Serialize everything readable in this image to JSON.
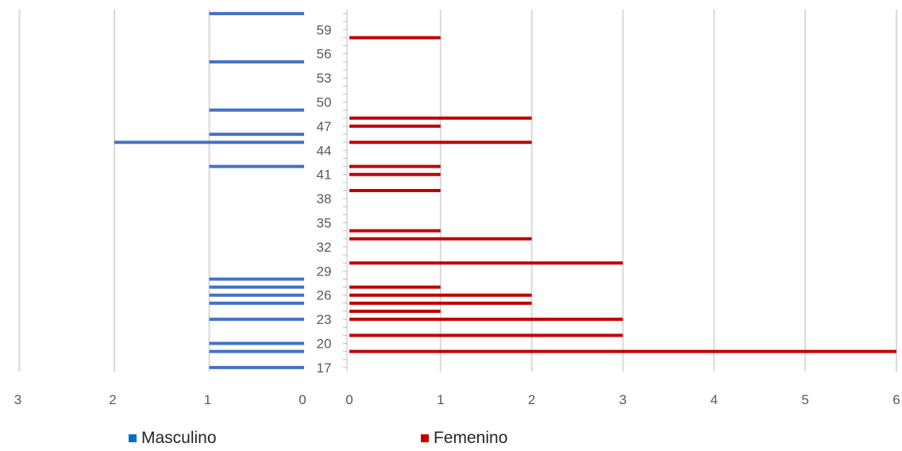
{
  "chart_data": {
    "type": "bar",
    "orientation": "horizontal",
    "layout": "population-pyramid",
    "grid": true,
    "legend_position": "bottom",
    "y_ticks": [
      "17",
      "20",
      "23",
      "26",
      "29",
      "32",
      "35",
      "38",
      "41",
      "44",
      "47",
      "50",
      "53",
      "56",
      "59"
    ],
    "left_axis": {
      "ticks": [
        "3",
        "2",
        "1",
        "0"
      ],
      "xlim": [
        0,
        3
      ],
      "reversed": true
    },
    "right_axis": {
      "ticks": [
        "0",
        "1",
        "2",
        "3",
        "4",
        "5",
        "6"
      ],
      "xlim": [
        0,
        6
      ]
    },
    "ylim": [
      16.5,
      61.5
    ],
    "series": [
      {
        "name": "Masculino",
        "color": "#4472C4",
        "legend_color": "#0070C0",
        "side": "left",
        "points": [
          {
            "age": 17,
            "value": 1
          },
          {
            "age": 19,
            "value": 1
          },
          {
            "age": 20,
            "value": 1
          },
          {
            "age": 23,
            "value": 1
          },
          {
            "age": 25,
            "value": 1
          },
          {
            "age": 26,
            "value": 1
          },
          {
            "age": 27,
            "value": 1
          },
          {
            "age": 28,
            "value": 1
          },
          {
            "age": 42,
            "value": 1
          },
          {
            "age": 45,
            "value": 2
          },
          {
            "age": 46,
            "value": 1
          },
          {
            "age": 49,
            "value": 1
          },
          {
            "age": 55,
            "value": 1
          },
          {
            "age": 61,
            "value": 1
          }
        ]
      },
      {
        "name": "Femenino",
        "color": "#C00000",
        "legend_color": "#C00000",
        "side": "right",
        "points": [
          {
            "age": 19,
            "value": 6
          },
          {
            "age": 21,
            "value": 3
          },
          {
            "age": 23,
            "value": 3
          },
          {
            "age": 24,
            "value": 1
          },
          {
            "age": 25,
            "value": 2
          },
          {
            "age": 26,
            "value": 2
          },
          {
            "age": 27,
            "value": 1
          },
          {
            "age": 30,
            "value": 3
          },
          {
            "age": 33,
            "value": 2
          },
          {
            "age": 34,
            "value": 1
          },
          {
            "age": 39,
            "value": 1
          },
          {
            "age": 41,
            "value": 1
          },
          {
            "age": 42,
            "value": 1
          },
          {
            "age": 45,
            "value": 2
          },
          {
            "age": 47,
            "value": 1
          },
          {
            "age": 48,
            "value": 2
          },
          {
            "age": 58,
            "value": 1
          }
        ]
      }
    ]
  }
}
